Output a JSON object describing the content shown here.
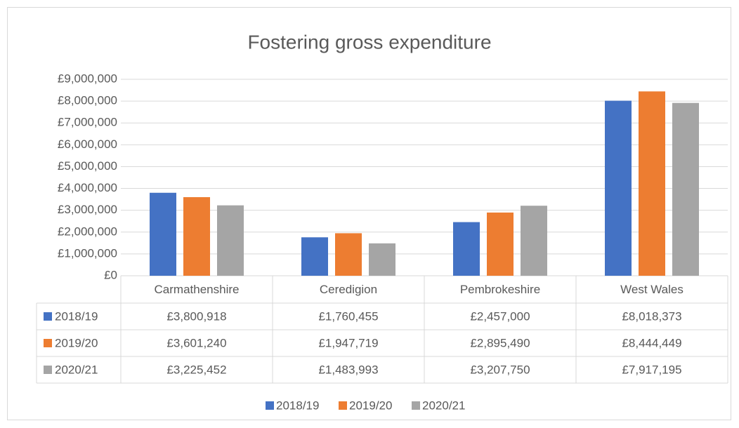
{
  "chart_data": {
    "type": "bar",
    "title": "Fostering gross expenditure",
    "categories": [
      "Carmathenshire",
      "Ceredigion",
      "Pembrokeshire",
      "West Wales"
    ],
    "series": [
      {
        "name": "2018/19",
        "color": "#4472c4",
        "values": [
          3800918,
          1760455,
          2457000,
          8018373
        ],
        "value_labels": [
          "£3,800,918",
          "£1,760,455",
          "£2,457,000",
          "£8,018,373"
        ]
      },
      {
        "name": "2019/20",
        "color": "#ed7d31",
        "values": [
          3601240,
          1947719,
          2895490,
          8444449
        ],
        "value_labels": [
          "£3,601,240",
          "£1,947,719",
          "£2,895,490",
          "£8,444,449"
        ]
      },
      {
        "name": "2020/21",
        "color": "#a5a5a5",
        "values": [
          3225452,
          1483993,
          3207750,
          7917195
        ],
        "value_labels": [
          "£3,225,452",
          "£1,483,993",
          "£3,207,750",
          "£7,917,195"
        ]
      }
    ],
    "ylim": [
      0,
      9000000
    ],
    "yticks": [
      {
        "value": 0,
        "label": "£0"
      },
      {
        "value": 1000000,
        "label": "£1,000,000"
      },
      {
        "value": 2000000,
        "label": "£2,000,000"
      },
      {
        "value": 3000000,
        "label": "£3,000,000"
      },
      {
        "value": 4000000,
        "label": "£4,000,000"
      },
      {
        "value": 5000000,
        "label": "£5,000,000"
      },
      {
        "value": 6000000,
        "label": "£6,000,000"
      },
      {
        "value": 7000000,
        "label": "£7,000,000"
      },
      {
        "value": 8000000,
        "label": "£8,000,000"
      },
      {
        "value": 9000000,
        "label": "£9,000,000"
      }
    ],
    "grid": true,
    "legend": "bottom",
    "data_table": true
  }
}
